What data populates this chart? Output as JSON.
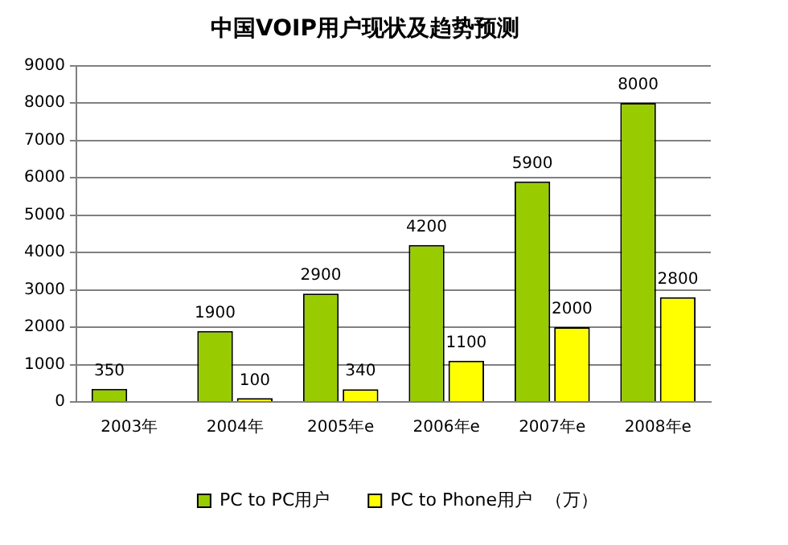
{
  "chart_data": {
    "type": "bar",
    "title": "中国VOIP用户现状及趋势预测",
    "categories": [
      "2003年",
      "2004年",
      "2005年e",
      "2006年e",
      "2007年e",
      "2008年e"
    ],
    "series": [
      {
        "name": "PC to PC用户",
        "color": "#99cc00",
        "values": [
          350,
          1900,
          2900,
          4200,
          5900,
          8000
        ]
      },
      {
        "name": "PC to Phone用户",
        "color": "#ffff00",
        "values": [
          null,
          100,
          340,
          1100,
          2000,
          2800
        ]
      }
    ],
    "ylim": [
      0,
      9000
    ],
    "yticks": [
      0,
      1000,
      2000,
      3000,
      4000,
      5000,
      6000,
      7000,
      8000,
      9000
    ],
    "grid": "y",
    "legend": "bottom",
    "data_labels": true,
    "annotations": [
      "（万）"
    ]
  }
}
